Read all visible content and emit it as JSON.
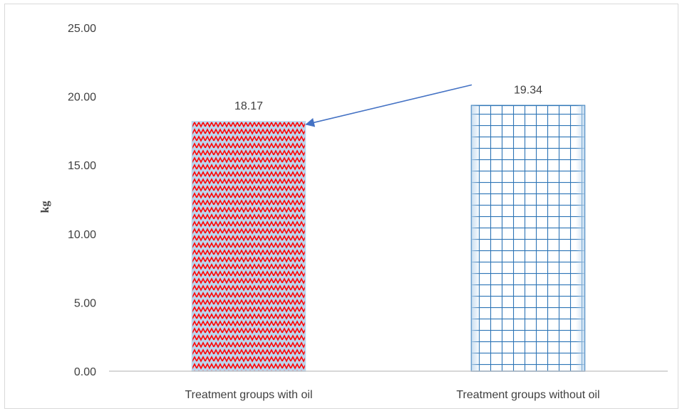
{
  "chart_data": {
    "type": "bar",
    "categories": [
      "Treatment groups with oil",
      "Treatment groups without oil"
    ],
    "values": [
      18.17,
      19.34
    ],
    "data_labels": [
      "18.17",
      "19.34"
    ],
    "title": "",
    "xlabel": "",
    "ylabel": "kg",
    "ylim": [
      0,
      25
    ],
    "yticks": [
      "0.00",
      "5.00",
      "10.00",
      "15.00",
      "20.00",
      "25.00"
    ],
    "ytick_values": [
      0,
      5,
      10,
      15,
      20,
      25
    ],
    "grid": false,
    "legend": "none",
    "annotations": [
      {
        "type": "arrow",
        "from_category": "Treatment groups without oil",
        "to_category": "Treatment groups with oil"
      }
    ],
    "colors": {
      "bar1_pattern": "#ff0000",
      "bar1_fill": "#bdd7ee",
      "bar2_pattern": "#2e75b6",
      "bar2_fill": "#ffffff",
      "arrow": "#4472c4",
      "axis": "#bfbfbf",
      "text": "#404040"
    },
    "bar_styles": [
      "zigzag",
      "grid"
    ]
  }
}
